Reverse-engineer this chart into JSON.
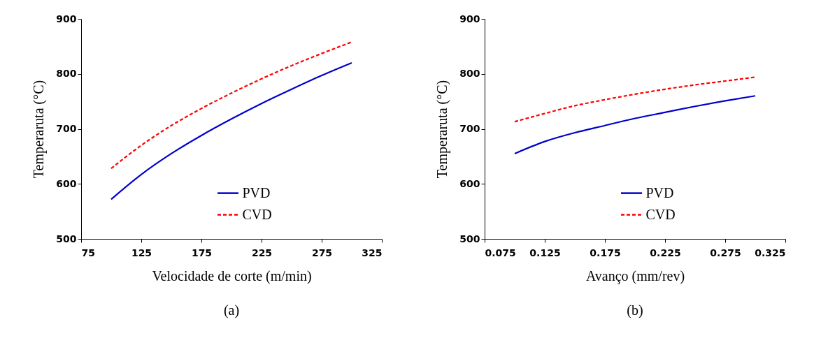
{
  "chart_data": [
    {
      "type": "line",
      "xlabel": "Velocidade de corte (m/min)",
      "ylabel": "Temperaruta (°C)",
      "annotations": [
        "(a)"
      ],
      "x": [
        100,
        125,
        150,
        175,
        200,
        225,
        250,
        275,
        300
      ],
      "xlim": [
        75,
        325
      ],
      "xticks": [
        75,
        125,
        175,
        225,
        275,
        325
      ],
      "ylim": [
        500,
        900
      ],
      "yticks": [
        500,
        600,
        700,
        800,
        900
      ],
      "grid": false,
      "legend": "bottom right",
      "marker": "none",
      "series": [
        {
          "name": "PVD",
          "color": "#0000cc",
          "line_style": "solid",
          "values": [
            572,
            617,
            655,
            688,
            718,
            746,
            772,
            797,
            820
          ]
        },
        {
          "name": "CVD",
          "color": "#ff0000",
          "line_style": "dashed",
          "values": [
            628,
            670,
            706,
            737,
            765,
            791,
            815,
            837,
            858
          ]
        }
      ]
    },
    {
      "type": "line",
      "xlabel": "Avanço (mm/rev)",
      "ylabel": "Temperaruta (°C)",
      "annotations": [
        "(b)"
      ],
      "x": [
        0.1,
        0.125,
        0.15,
        0.175,
        0.2,
        0.225,
        0.25,
        0.275,
        0.3
      ],
      "xlim": [
        0.075,
        0.325
      ],
      "xticks": [
        0.075,
        0.125,
        0.175,
        0.225,
        0.275,
        0.325
      ],
      "ylim": [
        500,
        900
      ],
      "yticks": [
        500,
        600,
        700,
        800,
        900
      ],
      "grid": false,
      "legend": "bottom right",
      "marker": "none",
      "series": [
        {
          "name": "PVD",
          "color": "#0000cc",
          "line_style": "solid",
          "values": [
            655,
            677,
            693,
            706,
            719,
            730,
            741,
            751,
            760
          ]
        },
        {
          "name": "CVD",
          "color": "#ff0000",
          "line_style": "dashed",
          "values": [
            713,
            728,
            742,
            753,
            763,
            772,
            780,
            787,
            794
          ]
        }
      ]
    }
  ]
}
